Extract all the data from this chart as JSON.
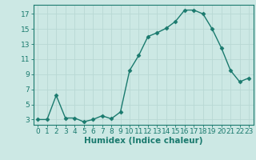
{
  "x": [
    0,
    1,
    2,
    3,
    4,
    5,
    6,
    7,
    8,
    9,
    10,
    11,
    12,
    13,
    14,
    15,
    16,
    17,
    18,
    19,
    20,
    21,
    22,
    23
  ],
  "y": [
    3,
    3,
    6.2,
    3.2,
    3.2,
    2.7,
    3.0,
    3.5,
    3.1,
    4.0,
    9.5,
    11.5,
    14.0,
    14.5,
    15.1,
    16.0,
    17.5,
    17.5,
    17.0,
    15.0,
    12.5,
    9.5,
    8.0,
    8.5
  ],
  "xlabel": "Humidex (Indice chaleur)",
  "yticks": [
    3,
    5,
    7,
    9,
    11,
    13,
    15,
    17
  ],
  "xticks": [
    0,
    1,
    2,
    3,
    4,
    5,
    6,
    7,
    8,
    9,
    10,
    11,
    12,
    13,
    14,
    15,
    16,
    17,
    18,
    19,
    20,
    21,
    22,
    23
  ],
  "xlim": [
    -0.5,
    23.5
  ],
  "ylim": [
    2.3,
    18.2
  ],
  "line_color": "#1a7a6e",
  "marker": "D",
  "marker_size": 2.5,
  "bg_color": "#cce8e4",
  "grid_color": "#b8d8d4",
  "axis_color": "#1a7a6e",
  "tick_label_color": "#1a7a6e",
  "xlabel_color": "#1a7a6e",
  "xlabel_fontsize": 7.5,
  "tick_fontsize": 6.5
}
